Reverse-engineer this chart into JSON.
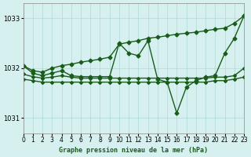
{
  "bg_color": "#d6f0f0",
  "grid_color": "#b0d8d8",
  "line_color": "#1a5c1a",
  "title": "Graphe pression niveau de la mer (hPa)",
  "xlim": [
    0,
    23
  ],
  "ylim": [
    1030.7,
    1033.3
  ],
  "yticks": [
    1031,
    1032,
    1033
  ],
  "xticks": [
    0,
    1,
    2,
    3,
    4,
    5,
    6,
    7,
    8,
    9,
    10,
    11,
    12,
    13,
    14,
    15,
    16,
    17,
    18,
    19,
    20,
    21,
    22,
    23
  ],
  "y_flat": [
    1031.78,
    1031.75,
    1031.72,
    1031.72,
    1031.72,
    1031.72,
    1031.72,
    1031.72,
    1031.72,
    1031.72,
    1031.72,
    1031.72,
    1031.72,
    1031.72,
    1031.72,
    1031.72,
    1031.72,
    1031.72,
    1031.72,
    1031.72,
    1031.75,
    1031.75,
    1031.78,
    1031.82
  ],
  "y_mid": [
    1031.88,
    1031.83,
    1031.8,
    1031.82,
    1031.85,
    1031.82,
    1031.8,
    1031.8,
    1031.8,
    1031.8,
    1031.8,
    1031.8,
    1031.8,
    1031.8,
    1031.8,
    1031.8,
    1031.8,
    1031.8,
    1031.8,
    1031.8,
    1031.82,
    1031.82,
    1031.85,
    1032.0
  ],
  "y_main": [
    1032.05,
    1031.9,
    1031.85,
    1031.9,
    1031.95,
    1031.85,
    1031.83,
    1031.83,
    1031.83,
    1031.83,
    1032.5,
    1032.3,
    1032.25,
    1032.55,
    1031.78,
    1031.72,
    1031.1,
    1031.62,
    1031.75,
    1031.82,
    1031.85,
    1032.3,
    1032.6,
    1033.05
  ],
  "y_trend": [
    1032.05,
    1031.95,
    1031.92,
    1032.0,
    1032.05,
    1032.08,
    1032.12,
    1032.15,
    1032.18,
    1032.22,
    1032.48,
    1032.52,
    1032.55,
    1032.6,
    1032.62,
    1032.65,
    1032.68,
    1032.7,
    1032.72,
    1032.75,
    1032.78,
    1032.8,
    1032.9,
    1033.05
  ]
}
